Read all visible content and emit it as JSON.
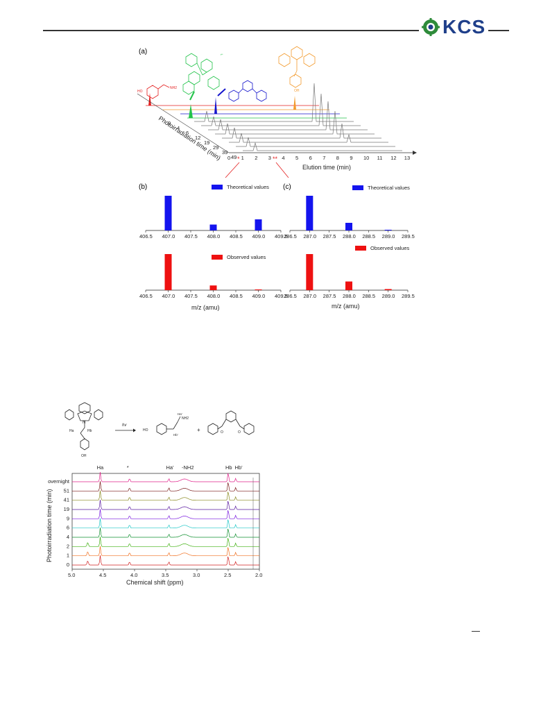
{
  "header": {
    "logo_text": "KCS"
  },
  "figure_top": {
    "panel_a_label": "(a)",
    "panel_b_label": "(b)",
    "panel_c_label": "(c)",
    "elution_axis_label": "Elution time (min)",
    "elution_ticks": [
      "0",
      "1",
      "2",
      "3",
      "4",
      "5",
      "6",
      "7",
      "8",
      "9",
      "10",
      "11",
      "12",
      "13"
    ],
    "photo_axis_label": "Photoirradiation time (min)",
    "photo_ticks": [
      "0",
      "4",
      "6",
      "12",
      "19",
      "29",
      "39",
      "49"
    ],
    "peak_marker_1": "*",
    "peak_marker_2": "**",
    "mz_label": "m/z (amu)",
    "legend_theoretical": "Theoretical values",
    "legend_observed": "Observed values",
    "colors": {
      "red": "#e41f1f",
      "orange": "#f39a2c",
      "green": "#22c34a",
      "blue": "#1414cc",
      "gray": "#777777"
    }
  },
  "chart_data": [
    {
      "type": "bar",
      "panel": "(b) theoretical",
      "x": [
        407.0,
        408.0,
        409.0
      ],
      "values": [
        100,
        17,
        32
      ],
      "xlim": [
        406.5,
        409.5
      ],
      "xticks": [
        "406.5",
        "407.0",
        "407.5",
        "408.0",
        "408.5",
        "409.0",
        "409.5"
      ],
      "series": [
        {
          "name": "Theoretical values",
          "color": "#1414ee"
        }
      ]
    },
    {
      "type": "bar",
      "panel": "(b) observed",
      "x": [
        407.0,
        408.0,
        409.0
      ],
      "values": [
        100,
        13,
        2
      ],
      "xlim": [
        406.5,
        409.5
      ],
      "xticks": [
        "406.5",
        "407.0",
        "407.5",
        "408.0",
        "408.5",
        "409.0",
        "409.5"
      ],
      "xlabel": "m/z (amu)",
      "series": [
        {
          "name": "Observed values",
          "color": "#ee1111"
        }
      ]
    },
    {
      "type": "bar",
      "panel": "(c) theoretical",
      "x": [
        287.0,
        288.0,
        289.0
      ],
      "values": [
        100,
        22,
        2
      ],
      "xlim": [
        286.5,
        289.5
      ],
      "xticks": [
        "286.5",
        "287.0",
        "287.5",
        "288.0",
        "288.5",
        "289.0",
        "289.5"
      ],
      "series": [
        {
          "name": "Theoretical values",
          "color": "#1414ee"
        }
      ]
    },
    {
      "type": "bar",
      "panel": "(c) observed",
      "x": [
        287.0,
        288.0,
        289.0
      ],
      "values": [
        100,
        24,
        3
      ],
      "xlim": [
        286.5,
        289.5
      ],
      "xticks": [
        "286.5",
        "287.0",
        "287.5",
        "288.0",
        "288.5",
        "289.0",
        "289.5"
      ],
      "xlabel": "m/z (amu)",
      "series": [
        {
          "name": "Observed values",
          "color": "#ee1111"
        }
      ]
    },
    {
      "type": "line",
      "panel": "NMR stack",
      "xlabel": "Chemical shift (ppm)",
      "ylabel": "Photoirradiation time (min)",
      "xlim": [
        5.0,
        2.0
      ],
      "xticks": [
        "5.0",
        "4.5",
        "4.0",
        "3.5",
        "3.0",
        "2.5",
        "2.0"
      ],
      "series_labels": [
        "overnight",
        "51",
        "41",
        "19",
        "9",
        "6",
        "4",
        "2",
        "1",
        "0"
      ],
      "series_colors": [
        "#e0218a",
        "#7a1a1a",
        "#8a8a20",
        "#5a1aa0",
        "#7a1ae0",
        "#20c8c8",
        "#109030",
        "#40b010",
        "#f07020",
        "#d02020"
      ],
      "peak_labels": [
        "Ha",
        "*",
        "Ha'",
        "-NH2",
        "Hb",
        "Hb'"
      ]
    }
  ],
  "scheme": {
    "hv_label": "hv",
    "plus": "+",
    "left_oh": "OH",
    "mid_ho": "HO",
    "mid_nh2": "NH2",
    "ha_label": "Ha",
    "hb_label": "Hb",
    "ha_prime": "Ha'",
    "hb_prime": "Hb'",
    "n_label": "N",
    "o_label": "O"
  }
}
